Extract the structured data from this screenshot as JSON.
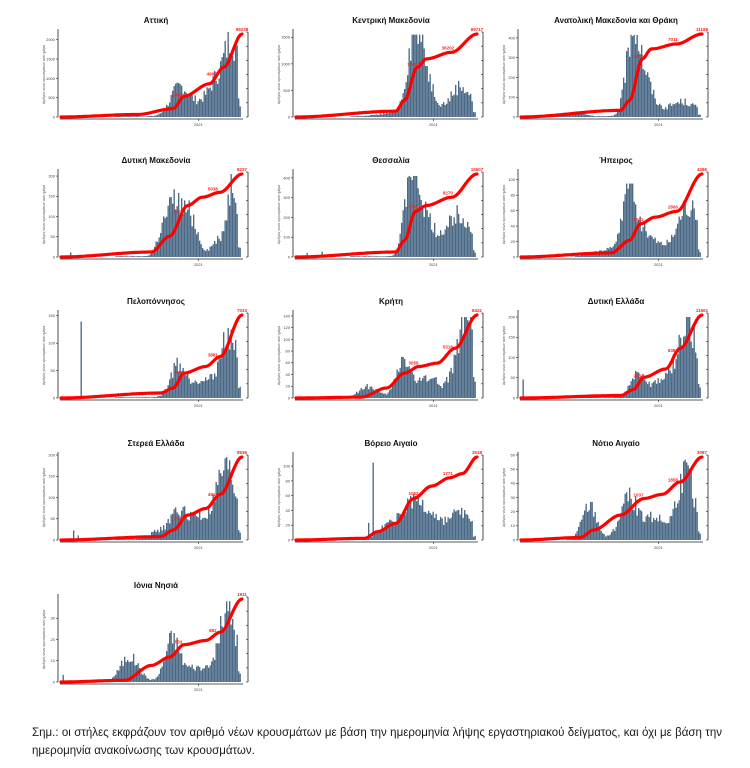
{
  "colors": {
    "bars": "#4a6a86",
    "cumulative_line": "#ff0000",
    "annotation": "#ff2020"
  },
  "y_axis_label": "Αριθμός νέων κρουσμάτων ανά ημέρα",
  "x_axis_tick": "2021",
  "note": "Σημ.: οι στήλες εκφράζουν τον αριθμό νέων κρουσμάτων με βάση την ημερομηνία λήψης εργαστηριακού δείγματος, και όχι με βάση την ημερομηνία ανακοίνωσης των κρουσμάτων.",
  "chart_data": [
    {
      "type": "bar",
      "title": "Αττική",
      "ylim": [
        0,
        2200
      ],
      "yticks": [
        0,
        500,
        1000,
        1500,
        2000
      ],
      "xlabel": "2021",
      "ylabel": "Αριθμός νέων κρουσμάτων ανά ημέρα",
      "series": [
        {
          "name": "new_cases_daily",
          "kind": "bar",
          "profile": "attiki",
          "peak": 2200
        },
        {
          "name": "cumulative_cases",
          "kind": "line",
          "profile": "attiki_cum",
          "final": 99238
        }
      ],
      "annotations": [
        {
          "label": "99238",
          "position": "end"
        },
        {
          "label": "49672",
          "position": "mid"
        },
        {
          "label": "29553",
          "position": "early"
        }
      ]
    },
    {
      "type": "bar",
      "title": "Κεντρική Μακεδονία",
      "ylim": [
        0,
        1600
      ],
      "yticks": [
        0,
        500,
        1000,
        1500
      ],
      "xlabel": "2021",
      "series": [
        {
          "name": "new_cases_daily",
          "kind": "bar",
          "profile": "kmak",
          "peak": 1550
        },
        {
          "name": "cumulative_cases",
          "kind": "line",
          "profile": "kmak_cum",
          "final": 69717
        }
      ],
      "annotations": [
        {
          "label": "69717",
          "position": "end"
        },
        {
          "label": "36202",
          "position": "mid"
        },
        {
          "label": "17461",
          "position": "early"
        }
      ]
    },
    {
      "type": "bar",
      "title": "Ανατολική Μακεδονία και Θράκη",
      "ylim": [
        0,
        430
      ],
      "yticks": [
        0,
        100,
        200,
        300,
        400
      ],
      "xlabel": "2021",
      "series": [
        {
          "name": "new_cases_daily",
          "kind": "bar",
          "profile": "amth",
          "peak": 415
        },
        {
          "name": "cumulative_cases",
          "kind": "line",
          "profile": "amth_cum",
          "final": 11168
        }
      ],
      "annotations": [
        {
          "label": "11168",
          "position": "end"
        },
        {
          "label": "7011",
          "position": "mid"
        },
        {
          "label": "3920",
          "position": "early"
        }
      ]
    },
    {
      "type": "bar",
      "title": "Δυτική Μακεδονία",
      "ylim": [
        0,
        210
      ],
      "yticks": [
        0,
        50,
        100,
        150,
        200
      ],
      "xlabel": "2021",
      "series": [
        {
          "name": "new_cases_daily",
          "kind": "bar",
          "profile": "dmak",
          "peak": 205
        },
        {
          "name": "cumulative_cases",
          "kind": "line",
          "profile": "dmak_cum",
          "final": 8237
        }
      ],
      "annotations": [
        {
          "label": "8237",
          "position": "end"
        },
        {
          "label": "5038",
          "position": "mid"
        },
        {
          "label": "1973",
          "position": "early"
        }
      ]
    },
    {
      "type": "bar",
      "title": "Θεσσαλία",
      "ylim": [
        0,
        430
      ],
      "yticks": [
        0,
        100,
        200,
        300,
        400
      ],
      "xlabel": "2021",
      "series": [
        {
          "name": "new_cases_daily",
          "kind": "bar",
          "profile": "thes",
          "peak": 410
        },
        {
          "name": "cumulative_cases",
          "kind": "line",
          "profile": "thes_cum",
          "final": 15507
        }
      ],
      "annotations": [
        {
          "label": "15507",
          "position": "end"
        },
        {
          "label": "8270",
          "position": "mid"
        },
        {
          "label": "4750",
          "position": "early"
        }
      ]
    },
    {
      "type": "bar",
      "title": "Ήπειρος",
      "ylim": [
        0,
        110
      ],
      "yticks": [
        0,
        20,
        40,
        60,
        80,
        100
      ],
      "xlabel": "2021",
      "series": [
        {
          "name": "new_cases_daily",
          "kind": "bar",
          "profile": "ipir",
          "peak": 95
        },
        {
          "name": "cumulative_cases",
          "kind": "line",
          "profile": "ipir_cum",
          "final": 4286
        }
      ],
      "annotations": [
        {
          "label": "4286",
          "position": "end"
        },
        {
          "label": "2806",
          "position": "mid"
        },
        {
          "label": "1511",
          "position": "early"
        }
      ]
    },
    {
      "type": "bar",
      "title": "Πελοπόννησος",
      "ylim": [
        0,
        155
      ],
      "yticks": [
        0,
        50,
        100,
        150
      ],
      "xlabel": "2021",
      "series": [
        {
          "name": "new_cases_daily",
          "kind": "bar",
          "profile": "pelo",
          "peak": 148
        },
        {
          "name": "cumulative_cases",
          "kind": "line",
          "profile": "pelo_cum",
          "final": 7033
        }
      ],
      "annotations": [
        {
          "label": "7033",
          "position": "end"
        },
        {
          "label": "3881",
          "position": "mid"
        },
        {
          "label": "2088",
          "position": "early"
        }
      ]
    },
    {
      "type": "bar",
      "title": "Κρήτη",
      "ylim": [
        0,
        145
      ],
      "yticks": [
        0,
        20,
        40,
        60,
        80,
        100,
        120,
        140
      ],
      "xlabel": "2021",
      "series": [
        {
          "name": "new_cases_daily",
          "kind": "bar",
          "profile": "krit",
          "peak": 138
        },
        {
          "name": "cumulative_cases",
          "kind": "line",
          "profile": "krit_cum",
          "final": 8421
        }
      ],
      "annotations": [
        {
          "label": "8421",
          "position": "end"
        },
        {
          "label": "5318",
          "position": "mid"
        },
        {
          "label": "3058",
          "position": "early"
        }
      ]
    },
    {
      "type": "bar",
      "title": "Δυτική Ελλάδα",
      "ylim": [
        0,
        210
      ],
      "yticks": [
        0,
        50,
        100,
        150,
        200
      ],
      "xlabel": "2021",
      "series": [
        {
          "name": "new_cases_daily",
          "kind": "bar",
          "profile": "dell",
          "peak": 200
        },
        {
          "name": "cumulative_cases",
          "kind": "line",
          "profile": "dell_cum",
          "final": 11561
        }
      ],
      "annotations": [
        {
          "label": "11561",
          "position": "end"
        },
        {
          "label": "6381",
          "position": "mid"
        },
        {
          "label": "2883",
          "position": "early"
        }
      ]
    },
    {
      "type": "bar",
      "title": "Στερεά Ελλάδα",
      "ylim": [
        0,
        200
      ],
      "yticks": [
        0,
        50,
        100,
        150,
        200
      ],
      "xlabel": "2021",
      "series": [
        {
          "name": "new_cases_daily",
          "kind": "bar",
          "profile": "ster",
          "peak": 195
        },
        {
          "name": "cumulative_cases",
          "kind": "line",
          "profile": "ster_cum",
          "final": 8536
        }
      ],
      "annotations": [
        {
          "label": "8536",
          "position": "end"
        },
        {
          "label": "4913",
          "position": "mid"
        },
        {
          "label": "2976",
          "position": "early"
        }
      ]
    },
    {
      "type": "bar",
      "title": "Βόρειο Αιγαίο",
      "ylim": [
        0,
        115
      ],
      "yticks": [
        0,
        20,
        40,
        60,
        80,
        100
      ],
      "xlabel": "2021",
      "series": [
        {
          "name": "new_cases_daily",
          "kind": "bar",
          "profile": "bair",
          "peak": 112
        },
        {
          "name": "cumulative_cases",
          "kind": "line",
          "profile": "bair_cum",
          "final": 3518
        }
      ],
      "annotations": [
        {
          "label": "3518",
          "position": "end"
        },
        {
          "label": "1771",
          "position": "mid"
        },
        {
          "label": "1062",
          "position": "early"
        }
      ]
    },
    {
      "type": "bar",
      "title": "Νότιο Αιγαίο",
      "ylim": [
        0,
        60
      ],
      "yticks": [
        0,
        10,
        20,
        30,
        40,
        50,
        60
      ],
      "xlabel": "2021",
      "series": [
        {
          "name": "new_cases_daily",
          "kind": "bar",
          "profile": "nair",
          "peak": 58
        },
        {
          "name": "cumulative_cases",
          "kind": "line",
          "profile": "nair_cum",
          "final": 3087
        }
      ],
      "annotations": [
        {
          "label": "3087",
          "position": "end"
        },
        {
          "label": "1858",
          "position": "mid"
        },
        {
          "label": "1037",
          "position": "early"
        }
      ]
    },
    {
      "type": "bar",
      "title": "Ιόνια Νησιά",
      "ylim": [
        0,
        40
      ],
      "yticks": [
        0,
        10,
        20,
        30
      ],
      "xlabel": "2021",
      "series": [
        {
          "name": "new_cases_daily",
          "kind": "bar",
          "profile": "ionn",
          "peak": 38
        },
        {
          "name": "cumulative_cases",
          "kind": "line",
          "profile": "ionn_cum",
          "final": 1911
        }
      ],
      "annotations": [
        {
          "label": "1911",
          "position": "end"
        },
        {
          "label": "882",
          "position": "mid"
        },
        {
          "label": "533",
          "position": "early"
        }
      ]
    }
  ]
}
